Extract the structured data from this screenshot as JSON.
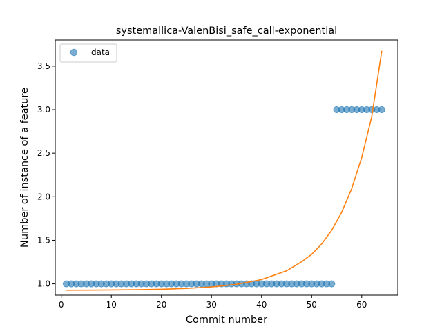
{
  "chart_data": {
    "type": "scatter",
    "title": "systemallica-ValenBisi_safe_call-exponential",
    "xlabel": "Commit number",
    "ylabel": "Number of instance of a feature",
    "xlim": [
      -1.2,
      67.2
    ],
    "ylim": [
      0.87,
      3.8
    ],
    "xticks": [
      0,
      10,
      20,
      30,
      40,
      50,
      60
    ],
    "yticks": [
      1.0,
      1.5,
      2.0,
      2.5,
      3.0,
      3.5
    ],
    "xtick_labels": [
      "0",
      "10",
      "20",
      "30",
      "40",
      "50",
      "60"
    ],
    "ytick_labels": [
      "1.0",
      "1.5",
      "2.0",
      "2.5",
      "3.0",
      "3.5"
    ],
    "grid": false,
    "legend_position": "upper-left",
    "series": [
      {
        "name": "data",
        "kind": "scatter",
        "color": "#1f77b4",
        "points": [
          [
            1,
            1
          ],
          [
            2,
            1
          ],
          [
            3,
            1
          ],
          [
            4,
            1
          ],
          [
            5,
            1
          ],
          [
            6,
            1
          ],
          [
            7,
            1
          ],
          [
            8,
            1
          ],
          [
            9,
            1
          ],
          [
            10,
            1
          ],
          [
            11,
            1
          ],
          [
            12,
            1
          ],
          [
            13,
            1
          ],
          [
            14,
            1
          ],
          [
            15,
            1
          ],
          [
            16,
            1
          ],
          [
            17,
            1
          ],
          [
            18,
            1
          ],
          [
            19,
            1
          ],
          [
            20,
            1
          ],
          [
            21,
            1
          ],
          [
            22,
            1
          ],
          [
            23,
            1
          ],
          [
            24,
            1
          ],
          [
            25,
            1
          ],
          [
            26,
            1
          ],
          [
            27,
            1
          ],
          [
            28,
            1
          ],
          [
            29,
            1
          ],
          [
            30,
            1
          ],
          [
            31,
            1
          ],
          [
            32,
            1
          ],
          [
            33,
            1
          ],
          [
            34,
            1
          ],
          [
            35,
            1
          ],
          [
            36,
            1
          ],
          [
            37,
            1
          ],
          [
            38,
            1
          ],
          [
            39,
            1
          ],
          [
            40,
            1
          ],
          [
            41,
            1
          ],
          [
            42,
            1
          ],
          [
            43,
            1
          ],
          [
            44,
            1
          ],
          [
            45,
            1
          ],
          [
            46,
            1
          ],
          [
            47,
            1
          ],
          [
            48,
            1
          ],
          [
            49,
            1
          ],
          [
            50,
            1
          ],
          [
            51,
            1
          ],
          [
            52,
            1
          ],
          [
            53,
            1
          ],
          [
            54,
            1
          ],
          [
            55,
            3
          ],
          [
            56,
            3
          ],
          [
            57,
            3
          ],
          [
            58,
            3
          ],
          [
            59,
            3
          ],
          [
            60,
            3
          ],
          [
            61,
            3
          ],
          [
            62,
            3
          ],
          [
            63,
            3
          ],
          [
            64,
            3
          ]
        ]
      },
      {
        "kind": "line",
        "color": "#ff7f0e",
        "points": [
          [
            1,
            0.927
          ],
          [
            5,
            0.928
          ],
          [
            10,
            0.93
          ],
          [
            15,
            0.933
          ],
          [
            20,
            0.938
          ],
          [
            25,
            0.948
          ],
          [
            30,
            0.964
          ],
          [
            35,
            0.994
          ],
          [
            40,
            1.049
          ],
          [
            45,
            1.15
          ],
          [
            48,
            1.254
          ],
          [
            50,
            1.338
          ],
          [
            52,
            1.458
          ],
          [
            54,
            1.615
          ],
          [
            56,
            1.822
          ],
          [
            58,
            2.094
          ],
          [
            60,
            2.451
          ],
          [
            62,
            2.92
          ],
          [
            64,
            3.675
          ]
        ]
      }
    ]
  }
}
